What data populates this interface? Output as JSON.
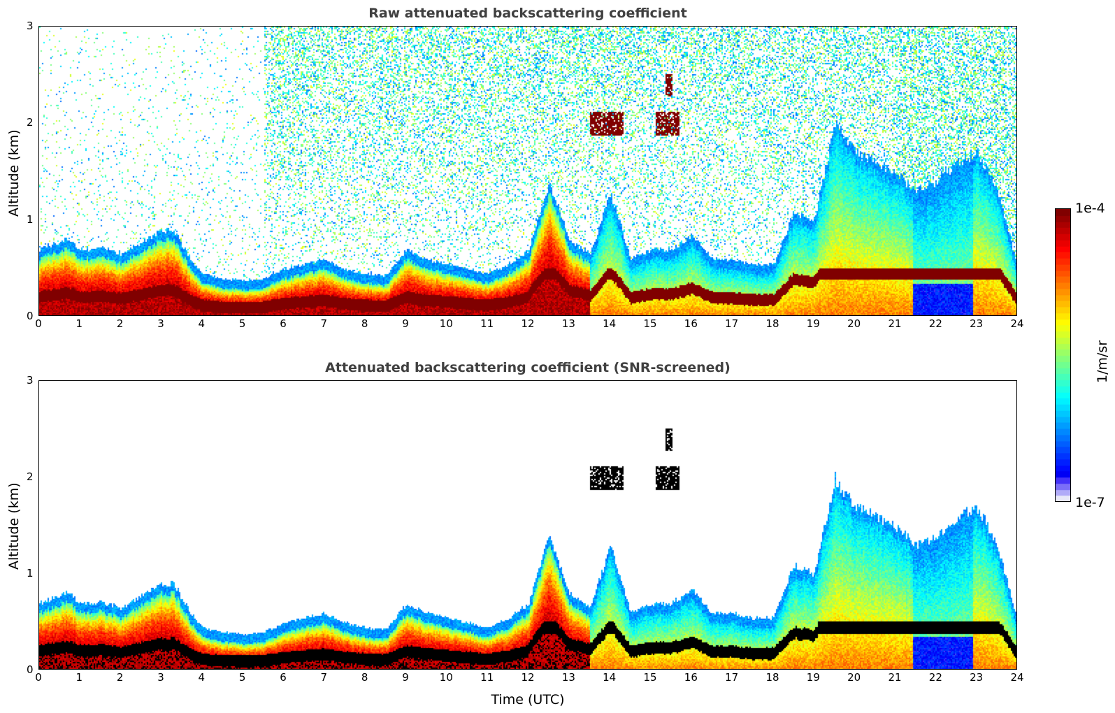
{
  "chart_data": [
    {
      "type": "heatmap",
      "title": "Raw attenuated backscattering coefficient",
      "xlabel": "",
      "ylabel": "Altitude (km)",
      "xlim": [
        0,
        24
      ],
      "ylim": [
        0,
        3
      ],
      "xticks": [
        "0",
        "1",
        "2",
        "3",
        "4",
        "5",
        "6",
        "7",
        "8",
        "9",
        "10",
        "11",
        "12",
        "13",
        "14",
        "15",
        "16",
        "17",
        "18",
        "19",
        "20",
        "21",
        "22",
        "23",
        "24"
      ],
      "yticks": [
        "0",
        "1",
        "2",
        "3"
      ],
      "boundary_layer_top_km": {
        "x": [
          0,
          0.7,
          1,
          1.5,
          2,
          2.5,
          3,
          3.3,
          3.7,
          4,
          4.5,
          5,
          5.5,
          6,
          6.5,
          7,
          7.5,
          8,
          8.5,
          9,
          9.5,
          10,
          10.5,
          11,
          11.5,
          12,
          12.5,
          13,
          13.5,
          14,
          14.5,
          15,
          15.5,
          16,
          16.5,
          17,
          17.5,
          18,
          18.5,
          19,
          19.5,
          20,
          20.5,
          21,
          21.5,
          22,
          22.5,
          23,
          23.5,
          24
        ],
        "y": [
          0.6,
          0.72,
          0.6,
          0.62,
          0.55,
          0.68,
          0.8,
          0.8,
          0.5,
          0.35,
          0.3,
          0.28,
          0.3,
          0.4,
          0.45,
          0.5,
          0.4,
          0.35,
          0.33,
          0.6,
          0.5,
          0.45,
          0.4,
          0.35,
          0.45,
          0.6,
          1.3,
          0.7,
          0.55,
          1.2,
          0.5,
          0.6,
          0.6,
          0.75,
          0.5,
          0.5,
          0.45,
          0.45,
          1.0,
          0.9,
          1.9,
          1.6,
          1.5,
          1.4,
          1.2,
          1.3,
          1.5,
          1.6,
          1.2,
          0.4
        ]
      },
      "elevated_layers": [
        {
          "x_start": 13.5,
          "x_end": 14.3,
          "altitude_km": 2.0
        },
        {
          "x_start": 15.1,
          "x_end": 15.7,
          "altitude_km": 2.0
        },
        {
          "x_start": 15.35,
          "x_end": 15.5,
          "altitude_km": 2.4
        }
      ]
    },
    {
      "type": "heatmap",
      "title": "Attenuated backscattering coefficient (SNR-screened)",
      "xlabel": "Time (UTC)",
      "ylabel": "Altitude (km)",
      "xlim": [
        0,
        24
      ],
      "ylim": [
        0,
        3
      ],
      "xticks": [
        "0",
        "1",
        "2",
        "3",
        "4",
        "5",
        "6",
        "7",
        "8",
        "9",
        "10",
        "11",
        "12",
        "13",
        "14",
        "15",
        "16",
        "17",
        "18",
        "19",
        "20",
        "21",
        "22",
        "23",
        "24"
      ],
      "yticks": [
        "0",
        "1",
        "2",
        "3"
      ]
    }
  ],
  "colorbar": {
    "min_label": "1e-7",
    "max_label": "1e-4",
    "unit": "1/m/sr",
    "colormap": "jet",
    "low_color": "#e8e8f8",
    "high_color": "#800000",
    "screened_color": "#000000"
  }
}
